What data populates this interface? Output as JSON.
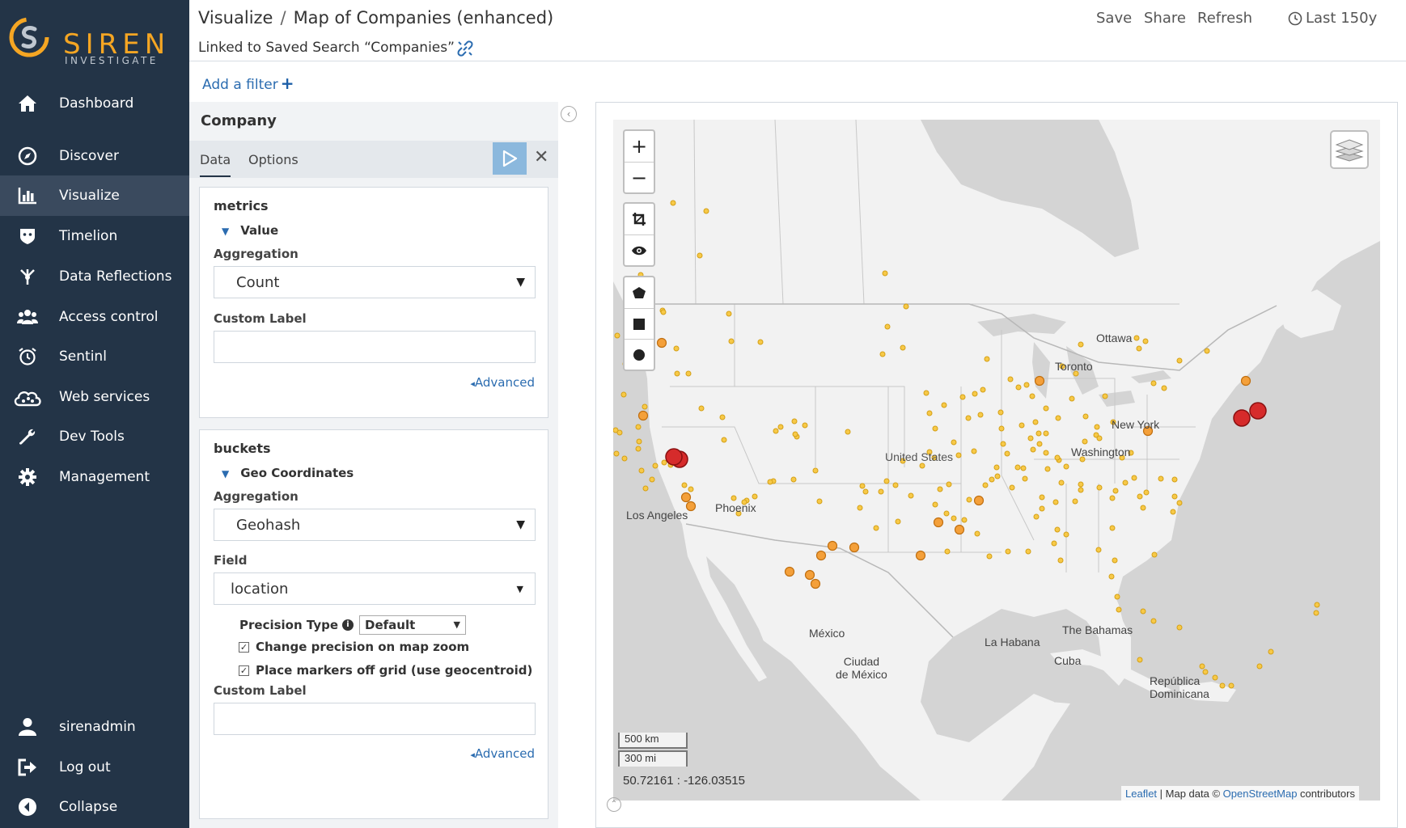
{
  "brand": {
    "name": "SIREN",
    "sub": "INVESTIGATE",
    "accent": "#f5a623"
  },
  "sidebar": {
    "items": [
      {
        "label": "Dashboard",
        "icon": "home-icon"
      },
      {
        "label": "Discover",
        "icon": "compass-icon"
      },
      {
        "label": "Visualize",
        "icon": "bar-chart-icon",
        "active": true
      },
      {
        "label": "Timelion",
        "icon": "timelion-icon"
      },
      {
        "label": "Data Reflections",
        "icon": "reflections-icon"
      },
      {
        "label": "Access control",
        "icon": "users-icon"
      },
      {
        "label": "Sentinl",
        "icon": "alarm-clock-icon"
      },
      {
        "label": "Web services",
        "icon": "cloud-icon"
      },
      {
        "label": "Dev Tools",
        "icon": "wrench-icon"
      },
      {
        "label": "Management",
        "icon": "gear-icon"
      }
    ],
    "bottom": [
      {
        "label": "sirenadmin",
        "icon": "user-icon"
      },
      {
        "label": "Log out",
        "icon": "logout-icon"
      },
      {
        "label": "Collapse",
        "icon": "collapse-icon"
      }
    ]
  },
  "header": {
    "breadcrumb_root": "Visualize",
    "breadcrumb_sep": "/",
    "title": "Map of Companies (enhanced)",
    "linked_text": "Linked to Saved Search “Companies”",
    "actions": {
      "save": "Save",
      "share": "Share",
      "refresh": "Refresh",
      "time": "Last 150y"
    }
  },
  "filter": {
    "add_label": "Add a filter",
    "plus": "+"
  },
  "editor": {
    "title": "Company",
    "tabs": [
      "Data",
      "Options"
    ],
    "close": "✕",
    "metrics": {
      "heading": "metrics",
      "toggle": "Value",
      "aggregation_label": "Aggregation",
      "aggregation_value": "Count",
      "custom_label": "Custom Label",
      "custom_value": "",
      "advanced": "Advanced"
    },
    "buckets": {
      "heading": "buckets",
      "toggle": "Geo Coordinates",
      "aggregation_label": "Aggregation",
      "aggregation_value": "Geohash",
      "field_label": "Field",
      "field_value": "location",
      "precision_label": "Precision Type",
      "precision_value": "Default",
      "change_precision": "Change precision on map zoom",
      "change_precision_checked": true,
      "place_markers": "Place markers off grid (use geocentroid)",
      "place_markers_checked": true,
      "custom_label": "Custom Label",
      "custom_value": "",
      "advanced": "Advanced"
    }
  },
  "map": {
    "labels": {
      "ottawa": "Ottawa",
      "toronto": "Toronto",
      "new_york": "New York",
      "washington": "Washington",
      "united_states": "United States",
      "phoenix": "Phoenix",
      "los_angeles": "Los Angeles",
      "mexico": "México",
      "ciudad_de_mexico": "Ciudad\nde México",
      "la_habana": "La Habana",
      "the_bahamas": "The Bahamas",
      "cuba": "Cuba",
      "republica_dominicana": "República\nDominicana"
    },
    "scale_km": "500 km",
    "scale_mi": "300 mi",
    "coordinates": "50.72161 : -126.03515",
    "attribution": {
      "leaflet": "Leaflet",
      "middle": " | Map data © ",
      "osm": "OpenStreetMap",
      "end": " contributors"
    },
    "zoom_in": "+",
    "zoom_out": "−",
    "marker_colors": {
      "small": "#f7c948",
      "medium": "#f4a03a",
      "large": "#d62b2b"
    }
  }
}
